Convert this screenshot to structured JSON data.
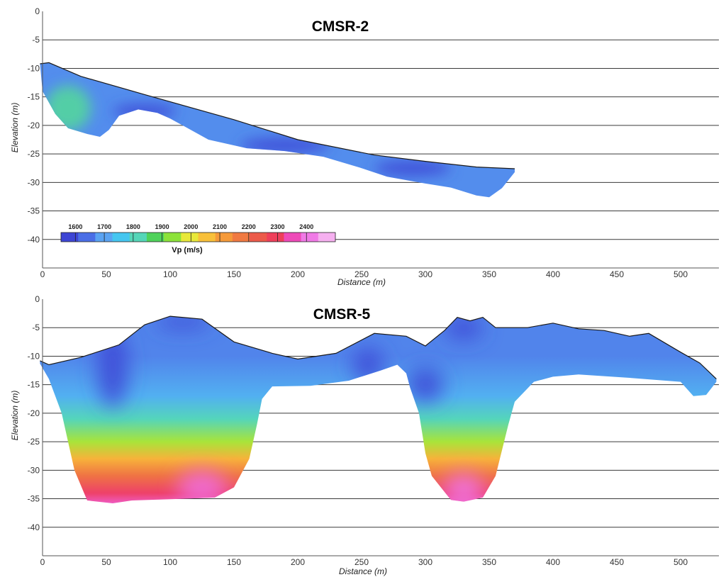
{
  "chart_data": [
    {
      "type": "heatmap",
      "title": "CMSR-2",
      "xlabel": "Distance (m)",
      "ylabel": "Elevation (m)",
      "xlim": [
        0,
        530
      ],
      "ylim": [
        -45,
        0
      ],
      "xticks": [
        0,
        50,
        100,
        150,
        200,
        250,
        300,
        350,
        400,
        450,
        500
      ],
      "yticks": [
        0,
        -5,
        -10,
        -15,
        -20,
        -25,
        -30,
        -35,
        -40
      ],
      "grid": "horizontal",
      "surface": [
        [
          -2,
          -9.2
        ],
        [
          5,
          -9
        ],
        [
          30,
          -11.4
        ],
        [
          80,
          -14.6
        ],
        [
          150,
          -19
        ],
        [
          200,
          -22.5
        ],
        [
          260,
          -25.2
        ],
        [
          300,
          -26.3
        ],
        [
          340,
          -27.3
        ],
        [
          370,
          -27.6
        ]
      ],
      "bottom": [
        [
          370,
          -28.2
        ],
        [
          360,
          -31
        ],
        [
          350,
          -32.6
        ],
        [
          340,
          -32.3
        ],
        [
          320,
          -30.9
        ],
        [
          300,
          -30.2
        ],
        [
          270,
          -29
        ],
        [
          250,
          -27.5
        ],
        [
          220,
          -25.5
        ],
        [
          190,
          -24.5
        ],
        [
          160,
          -24
        ],
        [
          130,
          -22.5
        ],
        [
          100,
          -18.8
        ],
        [
          90,
          -17.8
        ],
        [
          75,
          -17.2
        ],
        [
          60,
          -18.3
        ],
        [
          52,
          -20.8
        ],
        [
          45,
          -22
        ],
        [
          35,
          -21.5
        ],
        [
          20,
          -20.5
        ],
        [
          10,
          -18
        ],
        [
          0,
          -14
        ]
      ],
      "velocity_zones": [
        {
          "center": [
            20,
            -17
          ],
          "rx": 18,
          "ry": 4,
          "vp": 1820
        },
        {
          "center": [
            80,
            -17.5
          ],
          "rx": 25,
          "ry": 1.2,
          "vp": 1560
        },
        {
          "center": [
            190,
            -23.5
          ],
          "rx": 35,
          "ry": 1.3,
          "vp": 1560
        },
        {
          "center": [
            290,
            -27.5
          ],
          "rx": 30,
          "ry": 1.3,
          "vp": 1560
        }
      ],
      "colorbar": {
        "label": "Vp (m/s)",
        "min": 1550,
        "max": 2500,
        "ticks": [
          1600,
          1700,
          1800,
          1900,
          2000,
          2100,
          2200,
          2300,
          2400
        ],
        "colors": [
          "#3d45d4",
          "#4a6ee6",
          "#5aa3f2",
          "#45c6f0",
          "#55d6b8",
          "#4fd25a",
          "#8ce23a",
          "#e8e83a",
          "#f8c03a",
          "#f59a3a",
          "#f07a42",
          "#ec5a4a",
          "#ee3f5a",
          "#ee4ab8",
          "#f07ae6",
          "#f6b0f0"
        ]
      }
    },
    {
      "type": "heatmap",
      "title": "CMSR-5",
      "xlabel": "Distance (m)",
      "ylabel": "Elevation (m)",
      "xlim": [
        0,
        530
      ],
      "ylim": [
        -45,
        0
      ],
      "xticks": [
        0,
        50,
        100,
        150,
        200,
        250,
        300,
        350,
        400,
        450,
        500
      ],
      "yticks": [
        0,
        -5,
        -10,
        -15,
        -20,
        -25,
        -30,
        -35,
        -40
      ],
      "grid": "horizontal",
      "surface": [
        [
          -2,
          -10.8
        ],
        [
          5,
          -11.5
        ],
        [
          30,
          -10.2
        ],
        [
          60,
          -8
        ],
        [
          80,
          -4.5
        ],
        [
          100,
          -3
        ],
        [
          125,
          -3.5
        ],
        [
          150,
          -7.5
        ],
        [
          180,
          -9.5
        ],
        [
          200,
          -10.5
        ],
        [
          230,
          -9.5
        ],
        [
          260,
          -6
        ],
        [
          285,
          -6.5
        ],
        [
          300,
          -8.2
        ],
        [
          315,
          -5.5
        ],
        [
          325,
          -3.2
        ],
        [
          335,
          -3.8
        ],
        [
          345,
          -3.2
        ],
        [
          355,
          -5
        ],
        [
          380,
          -5
        ],
        [
          400,
          -4.2
        ],
        [
          420,
          -5.2
        ],
        [
          440,
          -5.5
        ],
        [
          460,
          -6.5
        ],
        [
          475,
          -6
        ],
        [
          500,
          -9.3
        ],
        [
          515,
          -11.2
        ],
        [
          528,
          -14
        ]
      ],
      "bottom": [
        [
          528,
          -14.5
        ],
        [
          520,
          -16.8
        ],
        [
          510,
          -17
        ],
        [
          500,
          -14.5
        ],
        [
          460,
          -13.8
        ],
        [
          420,
          -13.2
        ],
        [
          400,
          -13.6
        ],
        [
          385,
          -14.5
        ],
        [
          370,
          -18
        ],
        [
          365,
          -22
        ],
        [
          355,
          -31
        ],
        [
          345,
          -34.8
        ],
        [
          330,
          -35.5
        ],
        [
          320,
          -35.2
        ],
        [
          305,
          -31
        ],
        [
          300,
          -27
        ],
        [
          295,
          -20
        ],
        [
          288,
          -15.5
        ],
        [
          285,
          -13
        ],
        [
          278,
          -11.5
        ],
        [
          265,
          -12.5
        ],
        [
          240,
          -14.3
        ],
        [
          210,
          -15.2
        ],
        [
          180,
          -15.3
        ],
        [
          172,
          -17.5
        ],
        [
          168,
          -22
        ],
        [
          162,
          -28
        ],
        [
          150,
          -33
        ],
        [
          135,
          -34.8
        ],
        [
          110,
          -35
        ],
        [
          70,
          -35.3
        ],
        [
          55,
          -35.8
        ],
        [
          35,
          -35.3
        ],
        [
          25,
          -30
        ],
        [
          15,
          -20
        ],
        [
          5,
          -14
        ],
        [
          -2,
          -11.3
        ]
      ],
      "velocity_zones": [
        {
          "center": [
            55,
            -12
          ],
          "rx": 12,
          "ry": 7,
          "vp": 1560
        },
        {
          "center": [
            110,
            -4
          ],
          "rx": 22,
          "ry": 1.2,
          "vp": 1560
        },
        {
          "center": [
            255,
            -11.5
          ],
          "rx": 12,
          "ry": 3,
          "vp": 1560
        },
        {
          "center": [
            300,
            -15
          ],
          "rx": 14,
          "ry": 3,
          "vp": 1560
        },
        {
          "center": [
            330,
            -5
          ],
          "rx": 15,
          "ry": 2,
          "vp": 1560
        },
        {
          "center": [
            125,
            -33
          ],
          "rx": 20,
          "ry": 3,
          "vp": 2420
        },
        {
          "center": [
            330,
            -33.5
          ],
          "rx": 16,
          "ry": 3,
          "vp": 2430
        }
      ],
      "depth_gradient": [
        {
          "elev": -10,
          "vp": 1640
        },
        {
          "elev": -17,
          "vp": 1700
        },
        {
          "elev": -21,
          "vp": 1800
        },
        {
          "elev": -25,
          "vp": 1950
        },
        {
          "elev": -28,
          "vp": 2080
        },
        {
          "elev": -31,
          "vp": 2200
        },
        {
          "elev": -34,
          "vp": 2320
        },
        {
          "elev": -36,
          "vp": 2400
        }
      ]
    }
  ]
}
